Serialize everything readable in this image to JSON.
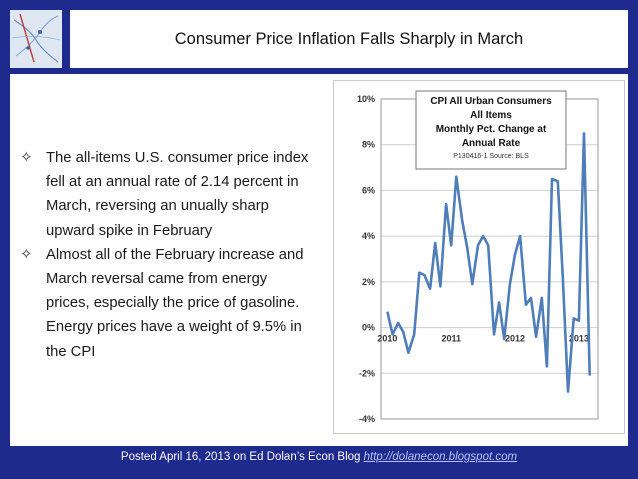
{
  "slide": {
    "title": "Consumer Price Inflation Falls Sharply in March",
    "bullets": [
      {
        "marker": "✧",
        "text": "The all-items U.S. consumer price index fell at an annual rate of 2.14 percent in March, reversing an unually sharp upward spike in February"
      },
      {
        "marker": "✧",
        "text": "Almost all of the February increase and March reversal came from energy prices, especially the price of gasoline. Energy prices have a weight of 9.5% in the CPI"
      }
    ],
    "footer_text": "Posted April 16, 2013 on Ed Dolan’s Econ Blog ",
    "footer_link": "http://dolanecon.blogspot.com"
  },
  "colors": {
    "background": "#1e2a8c",
    "series": "#4f7db8",
    "grid": "#cfcfcf",
    "legend_border": "#777777"
  },
  "chart_data": {
    "type": "line",
    "legend_lines": [
      "CPI All Urban Consumers",
      "All Items",
      "Monthly Pct. Change at",
      "Annual Rate"
    ],
    "legend_source": "P130416-1 Source: BLS",
    "ylim": [
      -4,
      10
    ],
    "y_ticks": [
      -4,
      -2,
      0,
      2,
      4,
      6,
      8,
      10
    ],
    "y_tick_labels": [
      "-4%",
      "-2%",
      "0%",
      "2%",
      "4%",
      "6%",
      "8%",
      "10%"
    ],
    "x_tick_labels": [
      {
        "label": "2010",
        "x": 2010.0
      },
      {
        "label": "2011",
        "x": 2011.0
      },
      {
        "label": "2012",
        "x": 2012.0
      },
      {
        "label": "2013",
        "x": 2013.0
      }
    ],
    "xlim": [
      2009.9,
      2013.3
    ],
    "series": [
      {
        "points": [
          [
            2010.0,
            0.7
          ],
          [
            2010.08,
            -0.3
          ],
          [
            2010.17,
            0.2
          ],
          [
            2010.25,
            -0.2
          ],
          [
            2010.33,
            -1.1
          ],
          [
            2010.42,
            -0.3
          ],
          [
            2010.5,
            2.4
          ],
          [
            2010.58,
            2.3
          ],
          [
            2010.67,
            1.7
          ],
          [
            2010.75,
            3.7
          ],
          [
            2010.83,
            1.8
          ],
          [
            2010.92,
            5.4
          ],
          [
            2011.0,
            3.6
          ],
          [
            2011.08,
            6.6
          ],
          [
            2011.17,
            4.7
          ],
          [
            2011.25,
            3.5
          ],
          [
            2011.33,
            1.9
          ],
          [
            2011.42,
            3.6
          ],
          [
            2011.5,
            4.0
          ],
          [
            2011.58,
            3.6
          ],
          [
            2011.67,
            -0.3
          ],
          [
            2011.75,
            1.1
          ],
          [
            2011.83,
            -0.5
          ],
          [
            2011.92,
            1.9
          ],
          [
            2012.0,
            3.2
          ],
          [
            2012.08,
            4.0
          ],
          [
            2012.17,
            1.0
          ],
          [
            2012.25,
            1.3
          ],
          [
            2012.33,
            -0.4
          ],
          [
            2012.42,
            1.3
          ],
          [
            2012.5,
            -1.7
          ],
          [
            2012.58,
            6.5
          ],
          [
            2012.67,
            6.4
          ],
          [
            2012.75,
            2.1
          ],
          [
            2012.83,
            -2.8
          ],
          [
            2012.92,
            0.4
          ],
          [
            2013.0,
            0.3
          ],
          [
            2013.08,
            8.5
          ],
          [
            2013.17,
            -2.1
          ]
        ]
      }
    ],
    "grid": true
  }
}
